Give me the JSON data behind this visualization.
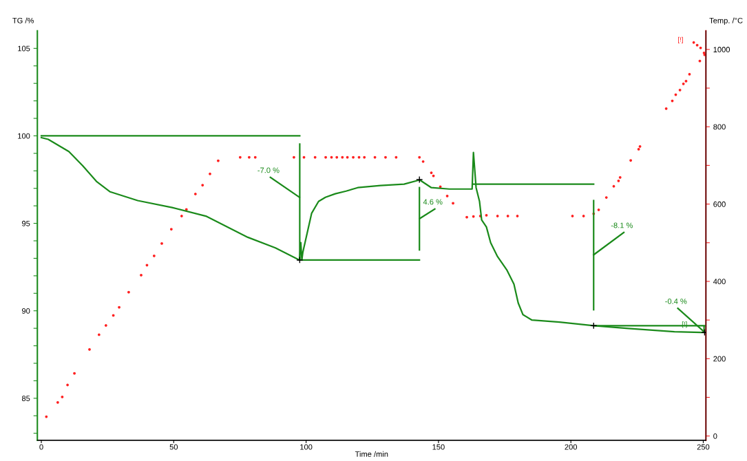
{
  "chart_data": {
    "type": "line",
    "xlabel": "Time /min",
    "ylabel": "TG /%",
    "y2label": "Temp. /°C",
    "xlim": [
      -1.5,
      251
    ],
    "xticks": [
      0,
      50,
      100,
      150,
      200,
      250
    ],
    "ylim": [
      82.6,
      106.0
    ],
    "yticks": [
      {
        "value": 83,
        "label": null
      },
      {
        "value": 84,
        "label": null
      },
      85,
      {
        "value": 86,
        "label": null
      },
      {
        "value": 87,
        "label": null
      },
      {
        "value": 88,
        "label": null
      },
      {
        "value": 89,
        "label": null
      },
      90,
      {
        "value": 91,
        "label": null
      },
      {
        "value": 92,
        "label": null
      },
      {
        "value": 93,
        "label": null
      },
      {
        "value": 94,
        "label": null
      },
      95,
      {
        "value": 96,
        "label": null
      },
      {
        "value": 97,
        "label": null
      },
      {
        "value": 98,
        "label": null
      },
      {
        "value": 99,
        "label": null
      },
      100,
      {
        "value": 101,
        "label": null
      },
      {
        "value": 102,
        "label": null
      },
      {
        "value": 103,
        "label": null
      },
      {
        "value": 104,
        "label": null
      },
      105
    ],
    "y2lim": [
      -11,
      1048
    ],
    "y2ticks": [
      0,
      {
        "value": 100,
        "label": null
      },
      200,
      {
        "value": 300,
        "label": null
      },
      400,
      {
        "value": 500,
        "label": null
      },
      600,
      {
        "value": 700,
        "label": null
      },
      800,
      {
        "value": 900,
        "label": null
      },
      1000
    ],
    "grid": false,
    "legend": false,
    "series": [
      {
        "type": "line",
        "color": "#1a8a1a",
        "x": [
          0,
          2.6,
          10.4,
          15.6,
          20.8,
          26,
          36.4,
          49.4,
          62.4,
          70.2,
          78,
          88.4,
          97.5,
          98.0,
          98.4,
          98.75,
          102.1,
          104.7,
          107.3,
          111.0,
          115.1,
          119.5,
          128.1,
          137.0,
          142.9,
          147.3,
          154.1,
          162.7,
          163.2,
          164.2,
          165.5,
          166.3,
          168.1,
          169.7,
          172.3,
          175.9,
          178.5,
          180.1,
          181.9,
          185.3,
          195.7,
          208.7,
          221.7,
          239.1,
          250.5
        ],
        "values": [
          99.9,
          99.8,
          99.1,
          98.3,
          97.4,
          96.8,
          96.3,
          95.9,
          95.4,
          94.8,
          94.2,
          93.6,
          92.9,
          93.9,
          92.9,
          93.33,
          95.58,
          96.25,
          96.49,
          96.69,
          96.84,
          97.04,
          97.16,
          97.24,
          97.48,
          97.04,
          96.96,
          96.96,
          99.05,
          97.04,
          96.25,
          95.19,
          94.79,
          93.89,
          93.1,
          92.31,
          91.52,
          90.45,
          89.78,
          89.47,
          89.35,
          89.15,
          88.99,
          88.8,
          88.76
        ]
      },
      {
        "color": "#1a8a1a",
        "x": [
          0,
          97.6
        ],
        "values": [
          100,
          100
        ]
      },
      {
        "color": "#1a8a1a",
        "x": [
          97.6,
          142.8
        ],
        "values": [
          92.9,
          92.9
        ]
      },
      {
        "color": "#1a8a1a",
        "x": [
          163,
          208.6
        ],
        "values": [
          97.24,
          97.24
        ]
      },
      {
        "color": "#1a8a1a",
        "x": [
          208.6,
          250.5
        ],
        "values": [
          89.15,
          89.15
        ]
      },
      {
        "type": "line",
        "color": "#1a8a1a",
        "x": [
          97.6,
          97.6
        ],
        "values": [
          99.53,
          92.94
        ]
      },
      {
        "type": "line",
        "color": "#1a8a1a",
        "x": [
          142.8,
          142.8
        ],
        "values": [
          97.04,
          93.48
        ]
      },
      {
        "type": "line",
        "color": "#1a8a1a",
        "x": [
          208.6,
          208.6
        ],
        "values": [
          96.3,
          90.06
        ]
      },
      {
        "type": "line",
        "color": "#1a8a1a",
        "x": [
          250.3,
          250.3
        ],
        "values": [
          89.1,
          88.8
        ]
      },
      {
        "type": "line",
        "color": "#1a8a1a",
        "x": [
          86.5,
          97.5
        ],
        "values": [
          97.63,
          96.49
        ]
      },
      {
        "type": "line",
        "color": "#1a8a1a",
        "x": [
          148.6,
          142.9
        ],
        "values": [
          95.82,
          95.27
        ]
      },
      {
        "type": "line",
        "color": "#1a8a1a",
        "x": [
          220,
          208.6
        ],
        "values": [
          94.48,
          93.2
        ]
      },
      {
        "type": "line",
        "color": "#1a8a1a",
        "x": [
          240.4,
          250.3
        ],
        "values": [
          90.14,
          88.8
        ]
      },
      {
        "type": "scatter",
        "color": "#000000",
        "marker": "cross",
        "x": [
          97.6,
          142.8,
          208.6,
          250.5
        ],
        "values": [
          92.9,
          97.5,
          89.15,
          88.76
        ]
      },
      {
        "type": "scatter",
        "color": "#ff2020",
        "marker": "circle",
        "axis": "y2",
        "x": [
          1.9,
          6.2,
          7.9,
          9.9,
          12.5,
          18.2,
          21.8,
          24.4,
          27.2,
          29.4,
          33,
          37.7,
          39.9,
          42.6,
          45.5,
          49.1,
          53,
          54.8,
          58.2,
          60.9,
          63.7,
          66.8,
          75.1,
          78.5,
          80.8,
          95.4,
          99.2,
          103.4,
          107.4,
          109.6,
          111.6,
          113.7,
          115.6,
          117.8,
          120,
          122,
          126,
          130,
          134,
          142.8,
          144.2,
          147.3,
          148.1,
          150.7,
          153.3,
          155.5,
          160.7,
          163.2,
          165.8,
          168.1,
          172.3,
          176.2,
          179.8,
          200.6,
          204.8,
          208.6,
          210.5,
          213.4,
          216.2,
          218,
          218.6,
          222.6,
          225.6,
          226.1,
          236,
          238.3,
          239.6,
          241.2,
          242.5,
          243.5,
          244.8,
          248.7,
          250.5,
          250.3,
          249,
          247.7,
          246.4
        ],
        "values": [
          50,
          87,
          101,
          132,
          162,
          224,
          262,
          286,
          312,
          333,
          372,
          416,
          442,
          466,
          498,
          535,
          569,
          586,
          626,
          649,
          678,
          712,
          721,
          721,
          721,
          721,
          721,
          721,
          721,
          721,
          721,
          721,
          721,
          721,
          721,
          721,
          721,
          721,
          721,
          721,
          710,
          681,
          673,
          645,
          621,
          602,
          566,
          568,
          569,
          571,
          569,
          569,
          569,
          569,
          569,
          575,
          585,
          617,
          646,
          660,
          669,
          713,
          742,
          749,
          847,
          867,
          883,
          895,
          911,
          918,
          936,
          970,
          986,
          991,
          1004,
          1011,
          1018
        ]
      }
    ],
    "annotations": [
      {
        "text": "-7.0 %",
        "x": 86.5,
        "y": 97.63
      },
      {
        "text": "4.6 %",
        "x": 148.6,
        "y": 95.82
      },
      {
        "text": "-8.1 %",
        "x": 220,
        "y": 94.48
      },
      {
        "text": "-0.4 %",
        "x": 240.4,
        "y": 90.14
      },
      "[!]",
      "[!]"
    ]
  }
}
